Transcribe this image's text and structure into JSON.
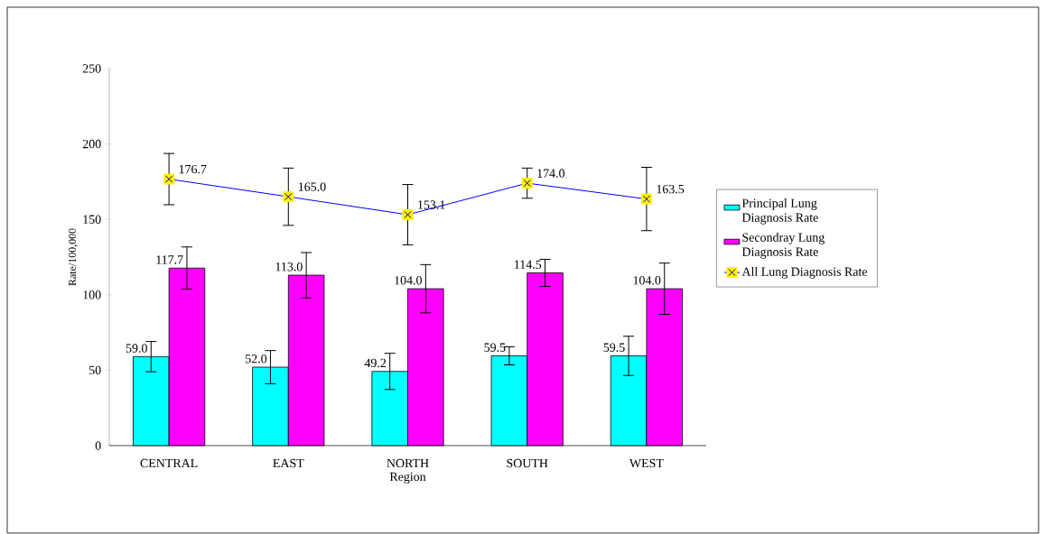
{
  "chart_data": {
    "type": "bar",
    "xlabel": "Region",
    "ylabel": "Rate/100,000",
    "categories": [
      "CENTRAL",
      "EAST",
      "NORTH",
      "SOUTH",
      "WEST"
    ],
    "series": [
      {
        "name": "Principal Lung Diagnosis Rate",
        "color": "#00ffff",
        "values": [
          59.0,
          52.0,
          49.2,
          59.5,
          59.5
        ],
        "value_labels": [
          "59.0",
          "52.0",
          "49.2",
          "59.5",
          "59.5"
        ],
        "errors": [
          10,
          11,
          12,
          6,
          13
        ]
      },
      {
        "name": "Secondray Lung Diagnosis Rate",
        "color": "#ff00ff",
        "values": [
          117.7,
          113.0,
          104.0,
          114.5,
          104.0
        ],
        "value_labels": [
          "117.7",
          "113.0",
          "104.0",
          "114.5",
          "104.0"
        ],
        "errors": [
          14,
          15,
          16,
          9,
          17
        ]
      },
      {
        "name": "All Lung Diagnosis Rate",
        "type": "line",
        "color": "#0000ff",
        "marker": "square",
        "values": [
          176.7,
          165.0,
          153.1,
          174.0,
          163.5
        ],
        "value_labels": [
          "176.7",
          "165.0",
          "153.1",
          "174.0",
          "163.5"
        ],
        "errors": [
          17,
          19,
          20,
          10,
          21
        ]
      }
    ],
    "ylim": [
      0,
      250
    ],
    "yticks": [
      0,
      50,
      100,
      150,
      200,
      250
    ],
    "legend": "right",
    "grid": false
  }
}
